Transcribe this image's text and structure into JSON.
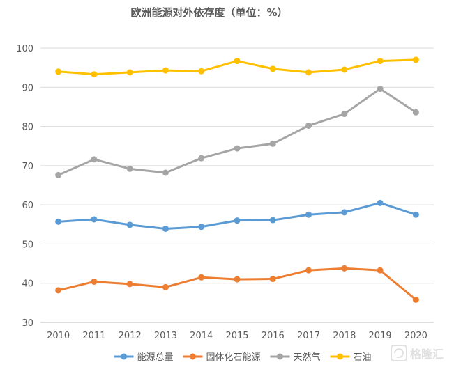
{
  "chart_data": {
    "type": "line",
    "title": "欧洲能源对外依存度（单位：%）",
    "xlabel": "",
    "ylabel": "",
    "ylim": [
      30,
      100
    ],
    "yticks": [
      30,
      40,
      50,
      60,
      70,
      80,
      90,
      100
    ],
    "grid": true,
    "legend_position": "bottom",
    "categories": [
      "2010",
      "2011",
      "2012",
      "2013",
      "2014",
      "2015",
      "2016",
      "2017",
      "2018",
      "2019",
      "2020"
    ],
    "series": [
      {
        "name": "能源总量",
        "color": "#5b9bd5",
        "values": [
          55.7,
          56.3,
          54.9,
          53.9,
          54.4,
          56.0,
          56.1,
          57.5,
          58.1,
          60.5,
          57.5
        ]
      },
      {
        "name": "固体化石能源",
        "color": "#ed7d31",
        "values": [
          38.2,
          40.4,
          39.8,
          39.0,
          41.5,
          41.0,
          41.1,
          43.3,
          43.8,
          43.3,
          35.8
        ]
      },
      {
        "name": "天然气",
        "color": "#a5a5a5",
        "values": [
          67.6,
          71.6,
          69.2,
          68.2,
          71.9,
          74.4,
          75.6,
          80.2,
          83.2,
          89.6,
          83.6
        ]
      },
      {
        "name": "石油",
        "color": "#ffc000",
        "values": [
          94.0,
          93.3,
          93.8,
          94.3,
          94.1,
          96.7,
          94.7,
          93.8,
          94.5,
          96.7,
          97.0
        ]
      }
    ]
  },
  "watermark": {
    "text": "格隆汇",
    "icon": "gelonghui-logo-icon"
  }
}
